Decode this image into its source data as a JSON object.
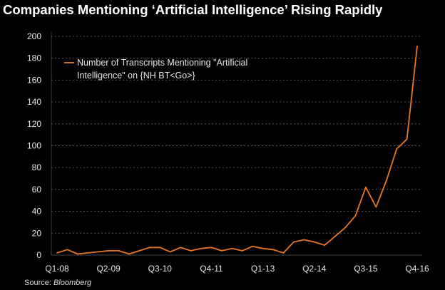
{
  "chart_data": {
    "type": "line",
    "title": "Companies Mentioning ‘Artificial Intelligence’ Rising Rapidly",
    "xlabel": "",
    "ylabel": "",
    "ylim": [
      0,
      200
    ],
    "yticks": [
      0,
      20,
      40,
      60,
      80,
      100,
      120,
      140,
      160,
      180,
      200
    ],
    "grid": true,
    "legend_position": "top-left",
    "x_tick_labels": [
      "Q1-08",
      "Q2-09",
      "Q3-10",
      "Q4-11",
      "Q1-13",
      "Q2-14",
      "Q3-15",
      "Q4-16"
    ],
    "x_tick_every": 5,
    "series": [
      {
        "name_line1": "Number of Transcripts Mentioning \"Artificial",
        "name_line2": "Intelligence\" on {NH BT<Go>}",
        "color": "#e87722",
        "values": [
          2,
          5,
          1,
          2,
          3,
          4,
          4,
          1,
          4,
          7,
          7,
          3,
          7,
          4,
          6,
          7,
          4,
          6,
          4,
          8,
          6,
          5,
          2,
          12,
          14,
          12,
          9,
          17,
          25,
          36,
          62,
          44,
          68,
          97,
          106,
          191
        ]
      }
    ],
    "source_label": "Source: ",
    "source_name": "Bloomberg"
  }
}
